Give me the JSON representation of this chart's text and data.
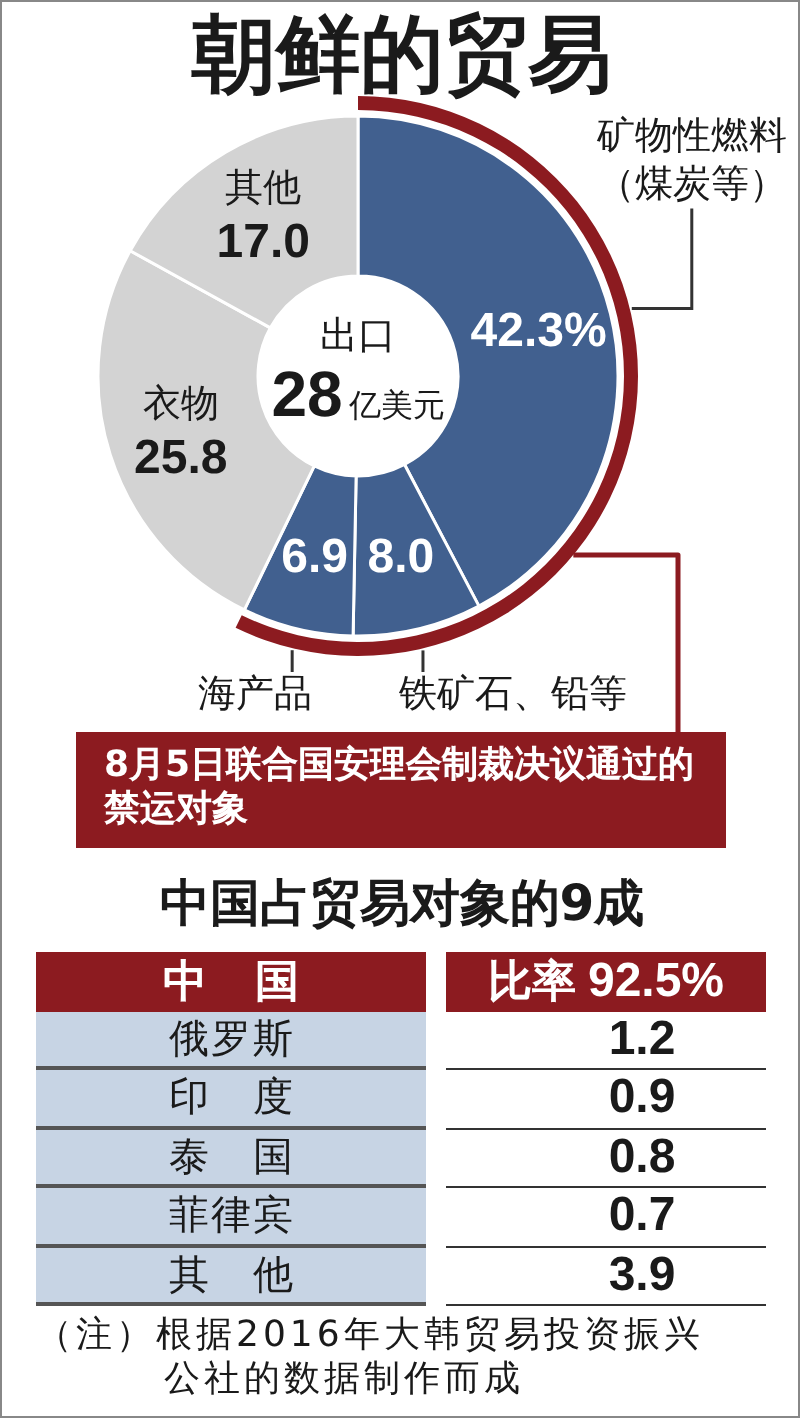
{
  "chart_data": [
    {
      "type": "donut",
      "title": "朝鲜的贸易",
      "categories": [
        "矿物性燃料（煤炭等）",
        "铁矿石、铅等",
        "海产品",
        "衣物",
        "其他"
      ],
      "values": [
        42.3,
        8.0,
        6.9,
        25.8,
        17.0
      ],
      "colors": [
        "#41608f",
        "#41608f",
        "#41608f",
        "#d3d3d3",
        "#d3d3d3"
      ],
      "value_labels": [
        "42.3%",
        "8.0",
        "6.9",
        "25.8",
        "17.0"
      ],
      "annotations": [
        "出口",
        "28亿美元",
        "8月5日联合国安理会制裁决议通过的禁运对象"
      ]
    },
    {
      "type": "other",
      "title": "中国占贸易对象的9成",
      "categories": [
        "中国",
        "俄罗斯",
        "印度",
        "泰国",
        "菲律宾",
        "其他"
      ],
      "ylabel": "比率",
      "values": [
        92.5,
        1.2,
        0.9,
        0.8,
        0.7,
        3.9
      ],
      "value_labels": [
        "92.5%",
        "1.2",
        "0.9",
        "0.8",
        "0.7",
        "3.9"
      ],
      "annotations": [
        "（注）根据2016年大韩贸易投资振兴公社的数据制作而成"
      ]
    }
  ]
}
